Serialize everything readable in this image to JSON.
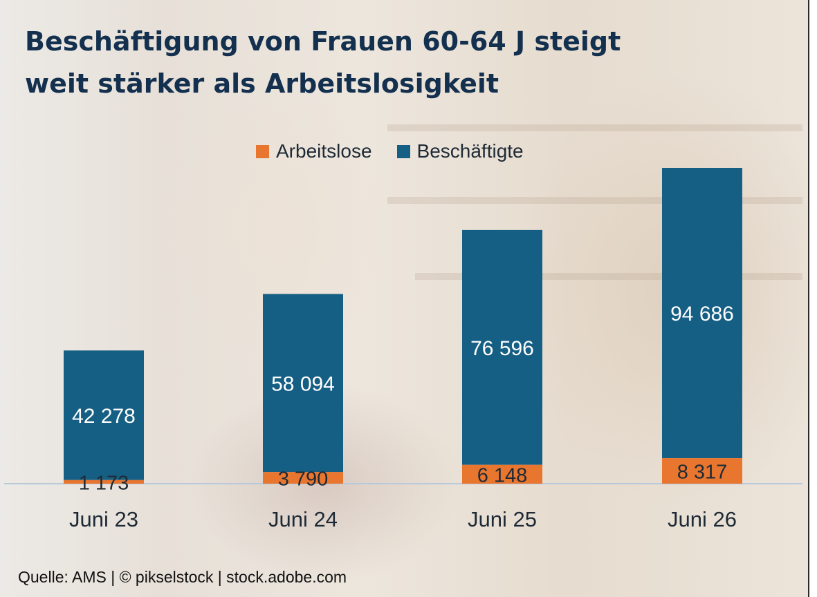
{
  "title": "Beschäftigung von Frauen 60-64 J steigt\nweit stärker als Arbeitslosigkeit",
  "source": "Quelle: AMS  | © pikselstock | stock.adobe.com",
  "colors": {
    "arbeitslose": "#e8762f",
    "beschaeftigte": "#165f84",
    "title": "#14304f"
  },
  "chart_data": {
    "type": "bar",
    "stacked": true,
    "categories": [
      "Juni 23",
      "Juni 24",
      "Juni 25",
      "Juni 26"
    ],
    "series": [
      {
        "name": "Arbeitslose",
        "values": [
          1173,
          3790,
          6148,
          8317
        ],
        "labels": [
          "1 173",
          "3 790",
          "6 148",
          "8 317"
        ],
        "color": "#e8762f"
      },
      {
        "name": "Beschäftigte",
        "values": [
          42278,
          58094,
          76596,
          94686
        ],
        "labels": [
          "42 278",
          "58 094",
          "76 596",
          "94 686"
        ],
        "color": "#165f84"
      }
    ],
    "legend": "top-center",
    "grid": false,
    "ylim": [
      0,
      103003
    ]
  }
}
